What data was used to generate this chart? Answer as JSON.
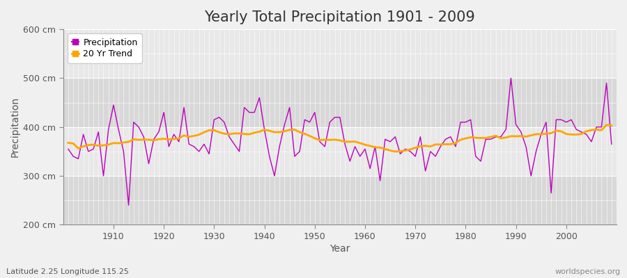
{
  "title": "Yearly Total Precipitation 1901 - 2009",
  "xlabel": "Year",
  "ylabel": "Precipitation",
  "subtitle": "Latitude 2.25 Longitude 115.25",
  "watermark": "worldspecies.org",
  "years": [
    1901,
    1902,
    1903,
    1904,
    1905,
    1906,
    1907,
    1908,
    1909,
    1910,
    1911,
    1912,
    1913,
    1914,
    1915,
    1916,
    1917,
    1918,
    1919,
    1920,
    1921,
    1922,
    1923,
    1924,
    1925,
    1926,
    1927,
    1928,
    1929,
    1930,
    1931,
    1932,
    1933,
    1934,
    1935,
    1936,
    1937,
    1938,
    1939,
    1940,
    1941,
    1942,
    1943,
    1944,
    1945,
    1946,
    1947,
    1948,
    1949,
    1950,
    1951,
    1952,
    1953,
    1954,
    1955,
    1956,
    1957,
    1958,
    1959,
    1960,
    1961,
    1962,
    1963,
    1964,
    1965,
    1966,
    1967,
    1968,
    1969,
    1970,
    1971,
    1972,
    1973,
    1974,
    1975,
    1976,
    1977,
    1978,
    1979,
    1980,
    1981,
    1982,
    1983,
    1984,
    1985,
    1986,
    1987,
    1988,
    1989,
    1990,
    1991,
    1992,
    1993,
    1994,
    1995,
    1996,
    1997,
    1998,
    1999,
    2000,
    2001,
    2002,
    2003,
    2004,
    2005,
    2006,
    2007,
    2008,
    2009
  ],
  "precipitation": [
    355,
    340,
    335,
    385,
    350,
    355,
    390,
    300,
    395,
    445,
    395,
    350,
    240,
    410,
    400,
    380,
    325,
    375,
    390,
    430,
    360,
    385,
    370,
    440,
    365,
    360,
    350,
    365,
    345,
    415,
    420,
    410,
    380,
    365,
    350,
    440,
    430,
    430,
    460,
    395,
    340,
    300,
    360,
    405,
    440,
    340,
    350,
    415,
    410,
    430,
    370,
    360,
    410,
    420,
    420,
    365,
    330,
    360,
    340,
    355,
    315,
    360,
    290,
    375,
    370,
    380,
    345,
    355,
    350,
    340,
    380,
    310,
    350,
    340,
    360,
    375,
    380,
    360,
    410,
    410,
    415,
    340,
    330,
    375,
    375,
    380,
    380,
    395,
    500,
    405,
    390,
    360,
    300,
    350,
    385,
    410,
    265,
    415,
    415,
    410,
    415,
    395,
    390,
    385,
    370,
    400,
    400,
    490,
    365
  ],
  "precip_color": "#bb00bb",
  "trend_color": "#FFA500",
  "figure_bg": "#f0f0f0",
  "plot_bg_dark": "#d8d8d8",
  "plot_bg_light": "#e8e8e8",
  "grid_color": "#ffffff",
  "ylim": [
    200,
    600
  ],
  "yticks": [
    200,
    300,
    400,
    500,
    600
  ],
  "ytick_labels": [
    "200 cm",
    "300 cm",
    "400 cm",
    "500 cm",
    "600 cm"
  ],
  "xticks": [
    1910,
    1920,
    1930,
    1940,
    1950,
    1960,
    1970,
    1980,
    1990,
    2000
  ],
  "title_fontsize": 15,
  "axis_fontsize": 10,
  "tick_fontsize": 9,
  "legend_fontsize": 9
}
